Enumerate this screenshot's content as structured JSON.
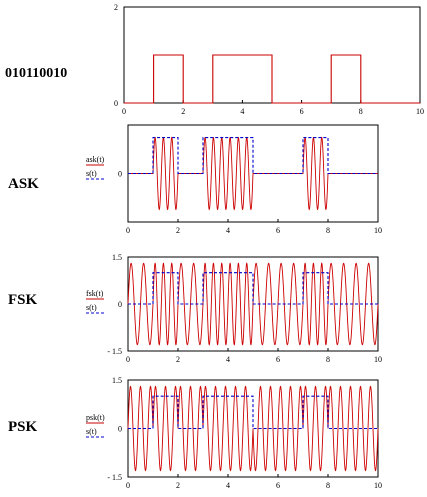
{
  "bitstring_label": "010110010",
  "colors": {
    "signal": "#cc0000",
    "bits": "#0000cc",
    "frame": "#000000"
  },
  "chart_data": [
    {
      "type": "line",
      "row_label": "",
      "x_ticks": [
        "0",
        "2",
        "4",
        "6",
        "8",
        "10"
      ],
      "y_ticks": [
        "0",
        "2"
      ],
      "xlim": [
        0,
        10
      ],
      "ylim": [
        0,
        2
      ],
      "legend": [],
      "series": [
        {
          "name": "",
          "kind": "bits",
          "style": "solid",
          "color": "#cc0000",
          "levels": [
            0,
            1,
            0,
            1,
            1,
            0,
            0,
            1,
            0,
            0
          ],
          "on_level": 1
        }
      ]
    },
    {
      "type": "line",
      "row_label": "ASK",
      "x_ticks": [
        "0",
        "2",
        "4",
        "6",
        "8",
        "10"
      ],
      "y_ticks": [
        "0"
      ],
      "xlim": [
        0,
        10
      ],
      "ylim": [
        -1.35,
        1.35
      ],
      "legend": [
        "ask(t)",
        "s(t)"
      ],
      "series": [
        {
          "name": "ask(t)",
          "kind": "ask",
          "style": "solid",
          "color": "#cc0000",
          "cycles_per_bit": 3
        },
        {
          "name": "s(t)",
          "kind": "bits",
          "style": "dashed",
          "color": "#0000cc",
          "levels": [
            0,
            1,
            0,
            1,
            1,
            0,
            0,
            1,
            0,
            0
          ],
          "on_level": 1
        }
      ]
    },
    {
      "type": "line",
      "row_label": "FSK",
      "x_ticks": [
        "0",
        "2",
        "4",
        "6",
        "8",
        "10"
      ],
      "y_ticks": [
        "1.5",
        "0",
        "- 1.5"
      ],
      "xlim": [
        0,
        10
      ],
      "ylim": [
        -1.5,
        1.5
      ],
      "legend": [
        "fsk(t)",
        "s(t)"
      ],
      "series": [
        {
          "name": "fsk(t)",
          "kind": "fsk",
          "style": "solid",
          "color": "#cc0000",
          "f_low": 2,
          "f_high": 3
        },
        {
          "name": "s(t)",
          "kind": "bits",
          "style": "dashed",
          "color": "#0000cc",
          "levels": [
            0,
            1,
            0,
            1,
            1,
            0,
            0,
            1,
            0,
            0
          ],
          "on_level": 1
        }
      ]
    },
    {
      "type": "line",
      "row_label": "PSK",
      "x_ticks": [
        "0",
        "2",
        "4",
        "6",
        "8",
        "10"
      ],
      "y_ticks": [
        "1.5",
        "0",
        "- 1.5"
      ],
      "xlim": [
        0,
        10
      ],
      "ylim": [
        -1.5,
        1.5
      ],
      "legend": [
        "psk(t)",
        "s(t)"
      ],
      "series": [
        {
          "name": "psk(t)",
          "kind": "psk",
          "style": "solid",
          "color": "#cc0000",
          "cycles_per_bit": 2.5
        },
        {
          "name": "s(t)",
          "kind": "bits",
          "style": "dashed",
          "color": "#0000cc",
          "levels": [
            0,
            1,
            0,
            1,
            1,
            0,
            0,
            1,
            0,
            0
          ],
          "on_level": 1
        }
      ]
    }
  ]
}
